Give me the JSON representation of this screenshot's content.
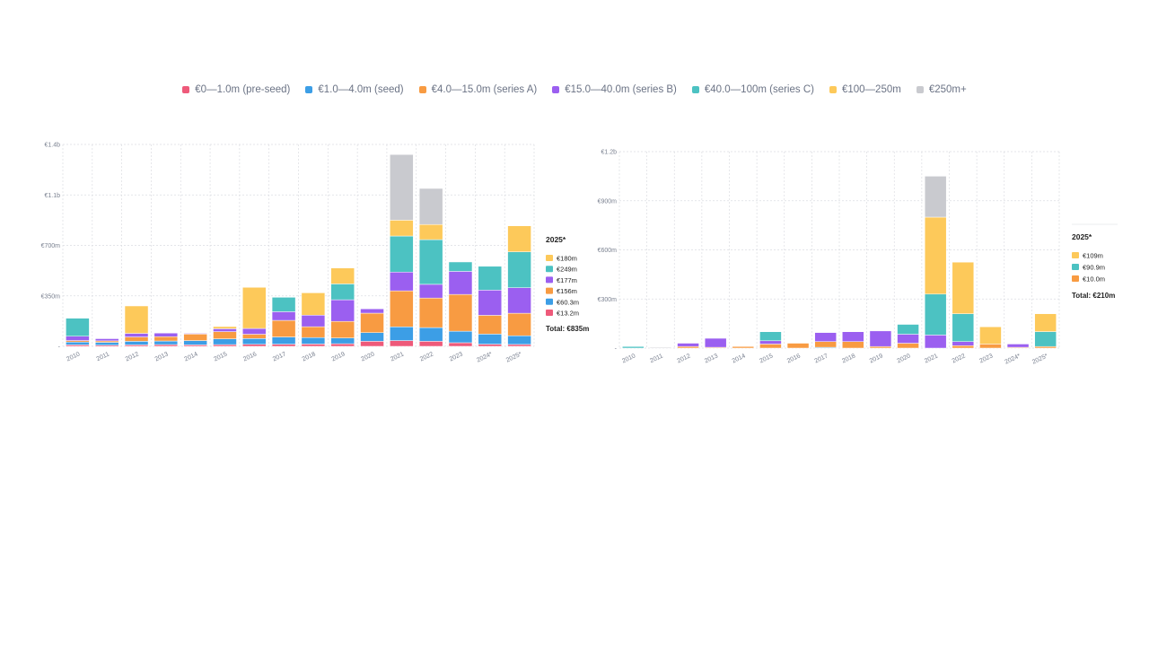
{
  "legend": {
    "items": [
      {
        "label": "€0—1.0m (pre-seed)",
        "color": "#ee5a7a"
      },
      {
        "label": "€1.0—4.0m (seed)",
        "color": "#3c9ee6"
      },
      {
        "label": "€4.0—15.0m (series A)",
        "color": "#f89b42"
      },
      {
        "label": "€15.0—40.0m (series B)",
        "color": "#9b5ff0"
      },
      {
        "label": "€40.0—100m (series C)",
        "color": "#4cc2c2"
      },
      {
        "label": "€100—250m",
        "color": "#fdc95a"
      },
      {
        "label": "€250m+",
        "color": "#c9cacf"
      }
    ]
  },
  "chart_data": [
    {
      "type": "bar",
      "stacked": true,
      "categories": [
        "2010",
        "2011",
        "2012",
        "2013",
        "2014",
        "2015",
        "2016",
        "2017",
        "2018",
        "2019",
        "2020",
        "2021",
        "2022",
        "2023",
        "2024*",
        "2025*"
      ],
      "yticks": [
        "€1.4b",
        "€1.1b",
        "€700m",
        "€350m",
        "-"
      ],
      "ylim": [
        0,
        1400
      ],
      "unit": "€m",
      "grid": true,
      "series": [
        {
          "name": "€0—1.0m (pre-seed)",
          "color": "#ee5a7a",
          "values": [
            10,
            8,
            10,
            12,
            10,
            12,
            14,
            15,
            16,
            18,
            35,
            40,
            35,
            25,
            15,
            13.2
          ]
        },
        {
          "name": "€1.0—4.0m (seed)",
          "color": "#3c9ee6",
          "values": [
            20,
            20,
            25,
            25,
            30,
            40,
            40,
            50,
            45,
            40,
            60,
            95,
            95,
            80,
            70,
            60.3
          ]
        },
        {
          "name": "€4.0—15.0m (series A)",
          "color": "#f89b42",
          "values": [
            10,
            10,
            30,
            30,
            45,
            50,
            30,
            115,
            75,
            115,
            135,
            250,
            205,
            255,
            130,
            156
          ]
        },
        {
          "name": "€15.0—40.0m (series B)",
          "color": "#9b5ff0",
          "values": [
            30,
            15,
            25,
            25,
            5,
            20,
            40,
            60,
            80,
            150,
            30,
            130,
            95,
            160,
            175,
            177
          ]
        },
        {
          "name": "€40.0—100m (series C)",
          "color": "#4cc2c2",
          "values": [
            125,
            0,
            0,
            0,
            0,
            0,
            0,
            100,
            0,
            110,
            0,
            250,
            310,
            65,
            165,
            249
          ]
        },
        {
          "name": "€100—250m",
          "color": "#fdc95a",
          "values": [
            0,
            0,
            190,
            0,
            0,
            15,
            285,
            0,
            155,
            110,
            0,
            110,
            105,
            0,
            0,
            180
          ]
        },
        {
          "name": "€250m+",
          "color": "#c9cacf",
          "values": [
            0,
            0,
            0,
            0,
            0,
            0,
            0,
            0,
            0,
            0,
            0,
            455,
            250,
            0,
            0,
            0
          ]
        }
      ],
      "side_panel": {
        "title": "2025*",
        "items": [
          {
            "label": "€180m",
            "color": "#fdc95a"
          },
          {
            "label": "€249m",
            "color": "#4cc2c2"
          },
          {
            "label": "€177m",
            "color": "#9b5ff0"
          },
          {
            "label": "€156m",
            "color": "#f89b42"
          },
          {
            "label": "€60.3m",
            "color": "#3c9ee6"
          },
          {
            "label": "€13.2m",
            "color": "#ee5a7a"
          }
        ],
        "total": "Total: €835m"
      }
    },
    {
      "type": "bar",
      "stacked": true,
      "categories": [
        "2010",
        "2011",
        "2012",
        "2013",
        "2014",
        "2015",
        "2016",
        "2017",
        "2018",
        "2019",
        "2020",
        "2021",
        "2022",
        "2023",
        "2024*",
        "2025*"
      ],
      "yticks": [
        "€1.2b",
        "€900m",
        "€600m",
        "€300m",
        "-"
      ],
      "ylim": [
        0,
        1200
      ],
      "unit": "€m",
      "grid": true,
      "series": [
        {
          "name": "€0—1.0m (pre-seed)",
          "color": "#ee5a7a",
          "values": [
            0,
            0,
            0,
            0,
            0,
            0,
            0,
            0,
            0,
            0,
            0,
            0,
            0,
            0,
            0,
            0
          ]
        },
        {
          "name": "€1.0—4.0m (seed)",
          "color": "#3c9ee6",
          "values": [
            0,
            0,
            0,
            0,
            0,
            0,
            0,
            5,
            0,
            0,
            0,
            0,
            0,
            0,
            0,
            0
          ]
        },
        {
          "name": "€4.0—15.0m (series A)",
          "color": "#f89b42",
          "values": [
            0,
            0,
            10,
            5,
            10,
            25,
            30,
            35,
            40,
            10,
            30,
            0,
            15,
            25,
            5,
            10.0
          ]
        },
        {
          "name": "€15.0—40.0m (series B)",
          "color": "#9b5ff0",
          "values": [
            0,
            0,
            20,
            55,
            0,
            20,
            0,
            55,
            60,
            95,
            55,
            80,
            25,
            0,
            20,
            0
          ]
        },
        {
          "name": "€40.0—100m (series C)",
          "color": "#4cc2c2",
          "values": [
            10,
            0,
            0,
            0,
            0,
            55,
            0,
            0,
            0,
            0,
            60,
            250,
            170,
            0,
            0,
            90.9
          ]
        },
        {
          "name": "€100—250m",
          "color": "#fdc95a",
          "values": [
            0,
            0,
            0,
            0,
            0,
            0,
            0,
            0,
            0,
            0,
            0,
            470,
            315,
            105,
            0,
            109
          ]
        },
        {
          "name": "€250m+",
          "color": "#c9cacf",
          "values": [
            0,
            5,
            0,
            0,
            0,
            0,
            0,
            0,
            0,
            0,
            0,
            250,
            0,
            0,
            0,
            0
          ]
        }
      ],
      "side_panel": {
        "title": "2025*",
        "items": [
          {
            "label": "€109m",
            "color": "#fdc95a"
          },
          {
            "label": "€90.9m",
            "color": "#4cc2c2"
          },
          {
            "label": "€10.0m",
            "color": "#f89b42"
          }
        ],
        "total": "Total: €210m"
      }
    }
  ]
}
